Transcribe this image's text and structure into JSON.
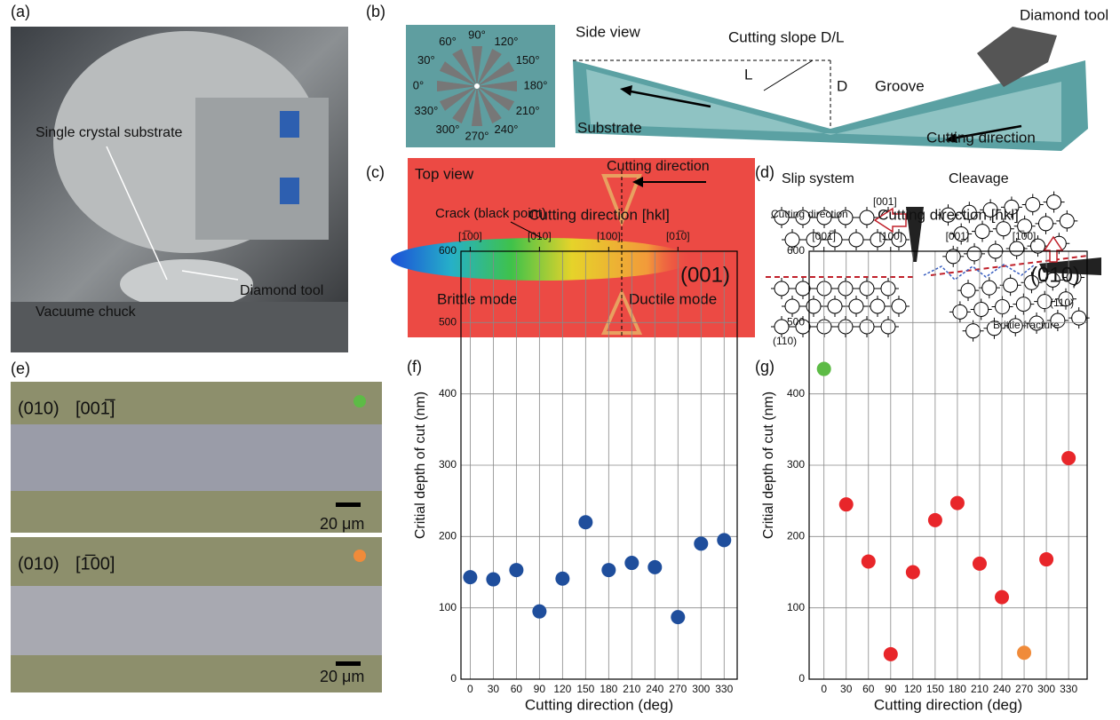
{
  "panels": {
    "a": {
      "label": "(a)",
      "labels": [
        "Single crystal substrate",
        "Diamond tool",
        "Vacuume chuck"
      ]
    },
    "b": {
      "label": "(b)",
      "angles": [
        "0°",
        "30°",
        "60°",
        "90°",
        "120°",
        "150°",
        "180°",
        "210°",
        "240°",
        "270°",
        "300°",
        "330°"
      ],
      "side_view": "Side view",
      "slope": "Cutting slope D/L",
      "tool": "Diamond tool",
      "L": "L",
      "D": "D",
      "groove": "Groove",
      "substrate": "Substrate",
      "direction": "Cutting direction"
    },
    "c": {
      "label": "(c)",
      "top_view": "Top view",
      "direction": "Cutting direction",
      "crack": "Crack (black point)",
      "brittle": "Brittle mode",
      "ductile": "Ductile mode"
    },
    "d": {
      "label": "(d)",
      "slip": "Slip system",
      "cleavage": "Cleavage",
      "miller": "[001]",
      "direction": "Cutting direction",
      "plane_left": "(110)",
      "plane_right": "(110)",
      "fracture": "Brittle fracture"
    },
    "e": {
      "label": "(e)",
      "images": [
        {
          "plane": "(010)",
          "direction": "[001̅]",
          "scale": "20 μm"
        },
        {
          "plane": "(010)",
          "direction": "[1̅00]",
          "scale": "20 μm"
        }
      ]
    }
  },
  "chart_data": [
    {
      "type": "scatter",
      "panel_label": "(f)",
      "annotation": "(001)",
      "x_label": "Cutting direction (deg)",
      "y_label": "Critial depth of cut (nm)",
      "top_label": "Cutting direction [hkl]",
      "x": [
        0,
        30,
        60,
        90,
        120,
        150,
        180,
        210,
        240,
        270,
        300,
        330
      ],
      "values": [
        143,
        140,
        153,
        95,
        141,
        220,
        153,
        163,
        157,
        87,
        190,
        195
      ],
      "color": "#1f4e9c",
      "xlim": [
        -12,
        347
      ],
      "ylim": [
        0,
        600
      ],
      "xticks": [
        0,
        30,
        60,
        90,
        120,
        150,
        180,
        210,
        240,
        270,
        300,
        330
      ],
      "yticks": [
        0,
        100,
        200,
        300,
        400,
        500,
        600
      ],
      "top_ticks": [
        {
          "value": 0,
          "label": "[1̅00]"
        },
        {
          "value": 90,
          "label": "[010]"
        },
        {
          "value": 180,
          "label": "[100]"
        },
        {
          "value": 270,
          "label": "[01̅0]"
        }
      ],
      "grid": true
    },
    {
      "type": "scatter",
      "panel_label": "(g)",
      "annotation": "(010)",
      "x_label": "Cutting direction (deg)",
      "y_label": "Critial depth of cut (nm)",
      "top_label": "Cutting direction [hkl]",
      "x": [
        0,
        30,
        60,
        90,
        120,
        150,
        180,
        210,
        240,
        270,
        300,
        330
      ],
      "values": [
        435,
        245,
        165,
        35,
        150,
        223,
        247,
        162,
        115,
        37,
        168,
        310
      ],
      "colors": [
        "#5dbb46",
        "#e8262a",
        "#e8262a",
        "#e8262a",
        "#e8262a",
        "#e8262a",
        "#e8262a",
        "#e8262a",
        "#e8262a",
        "#f08b3a",
        "#e8262a",
        "#e8262a"
      ],
      "xlim": [
        -20,
        355
      ],
      "ylim": [
        0,
        600
      ],
      "xticks": [
        0,
        30,
        60,
        90,
        120,
        150,
        180,
        210,
        240,
        270,
        300,
        330
      ],
      "yticks": [
        0,
        100,
        200,
        300,
        400,
        500,
        600
      ],
      "top_ticks": [
        {
          "value": 0,
          "label": "[001̅]"
        },
        {
          "value": 90,
          "label": "[100]"
        },
        {
          "value": 180,
          "label": "[001]"
        },
        {
          "value": 270,
          "label": "[1̅00]"
        }
      ],
      "grid": true
    }
  ]
}
